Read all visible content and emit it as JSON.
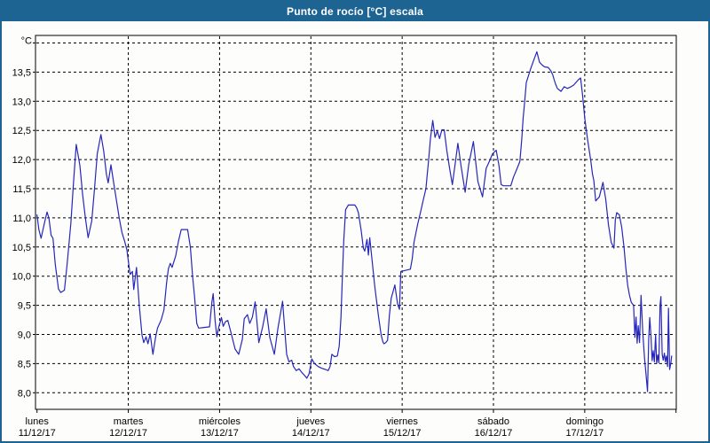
{
  "title": "Punto de rocío [°C] escala",
  "colors": {
    "titlebar": "#1e6493",
    "window_border": "#1e6493",
    "background": "#fdfefc",
    "plot_border": "#000000",
    "grid": "#000000",
    "line": "#2626bb",
    "title_text": "#ffffff",
    "axis_text": "#000000"
  },
  "y_axis": {
    "unit_label": "°C",
    "ticks": [
      {
        "value": 13.5,
        "label": "13,5"
      },
      {
        "value": 13.0,
        "label": "13,0"
      },
      {
        "value": 12.5,
        "label": "12,5"
      },
      {
        "value": 12.0,
        "label": "12,0"
      },
      {
        "value": 11.5,
        "label": "11,5"
      },
      {
        "value": 11.0,
        "label": "11,0"
      },
      {
        "value": 10.5,
        "label": "10,5"
      },
      {
        "value": 10.0,
        "label": "10,0"
      },
      {
        "value": 9.5,
        "label": "9,5"
      },
      {
        "value": 9.0,
        "label": "9,0"
      },
      {
        "value": 8.5,
        "label": "8,5"
      },
      {
        "value": 8.0,
        "label": "8,0"
      }
    ],
    "grid_min": 8.0,
    "grid_max": 14.0,
    "grid_step": 0.5
  },
  "x_axis": {
    "days": [
      {
        "name": "lunes",
        "date": "11/12/17"
      },
      {
        "name": "martes",
        "date": "12/12/17"
      },
      {
        "name": "miércoles",
        "date": "13/12/17"
      },
      {
        "name": "jueves",
        "date": "14/12/17"
      },
      {
        "name": "viernes",
        "date": "15/12/17"
      },
      {
        "name": "sábado",
        "date": "16/12/17"
      },
      {
        "name": "domingo",
        "date": "17/12/17"
      }
    ]
  },
  "chart_data": {
    "type": "line",
    "title": "Punto de rocío [°C] escala",
    "ylabel": "°C",
    "ylim": [
      7.7,
      14.15
    ],
    "xlim_days": [
      0,
      7
    ],
    "grid": "dashed",
    "legend": false,
    "x_unit": "days since lunes 11/12/17 00:00",
    "series": [
      {
        "name": "Punto de rocío",
        "color": "#2626bb",
        "points": [
          [
            0,
            11.05
          ],
          [
            0.02,
            10.8
          ],
          [
            0.045,
            10.65
          ],
          [
            0.08,
            10.9
          ],
          [
            0.11,
            11.1
          ],
          [
            0.13,
            11.0
          ],
          [
            0.155,
            10.7
          ],
          [
            0.175,
            10.65
          ],
          [
            0.2,
            10.2
          ],
          [
            0.235,
            9.78
          ],
          [
            0.26,
            9.72
          ],
          [
            0.3,
            9.76
          ],
          [
            0.33,
            10.2
          ],
          [
            0.37,
            10.9
          ],
          [
            0.4,
            11.6
          ],
          [
            0.43,
            12.26
          ],
          [
            0.47,
            11.9
          ],
          [
            0.5,
            11.4
          ],
          [
            0.53,
            11.0
          ],
          [
            0.56,
            10.66
          ],
          [
            0.6,
            10.95
          ],
          [
            0.63,
            11.5
          ],
          [
            0.66,
            12.1
          ],
          [
            0.7,
            12.43
          ],
          [
            0.73,
            12.15
          ],
          [
            0.76,
            11.75
          ],
          [
            0.78,
            11.6
          ],
          [
            0.81,
            11.91
          ],
          [
            0.84,
            11.6
          ],
          [
            0.87,
            11.3
          ],
          [
            0.9,
            11.0
          ],
          [
            0.93,
            10.75
          ],
          [
            0.96,
            10.6
          ],
          [
            0.985,
            10.45
          ],
          [
            1.005,
            10.2
          ],
          [
            1.02,
            10.03
          ],
          [
            1.045,
            10.08
          ],
          [
            1.06,
            9.77
          ],
          [
            1.09,
            10.15
          ],
          [
            1.12,
            9.5
          ],
          [
            1.15,
            8.99
          ],
          [
            1.17,
            8.86
          ],
          [
            1.195,
            8.96
          ],
          [
            1.215,
            8.84
          ],
          [
            1.24,
            9.01
          ],
          [
            1.27,
            8.66
          ],
          [
            1.3,
            8.96
          ],
          [
            1.32,
            9.11
          ],
          [
            1.36,
            9.25
          ],
          [
            1.39,
            9.42
          ],
          [
            1.42,
            9.9
          ],
          [
            1.44,
            10.13
          ],
          [
            1.46,
            10.22
          ],
          [
            1.48,
            10.15
          ],
          [
            1.52,
            10.35
          ],
          [
            1.55,
            10.6
          ],
          [
            1.58,
            10.8
          ],
          [
            1.65,
            10.8
          ],
          [
            1.68,
            10.5
          ],
          [
            1.705,
            9.98
          ],
          [
            1.725,
            9.67
          ],
          [
            1.75,
            9.19
          ],
          [
            1.77,
            9.11
          ],
          [
            1.83,
            9.12
          ],
          [
            1.89,
            9.13
          ],
          [
            1.915,
            9.55
          ],
          [
            1.93,
            9.7
          ],
          [
            1.95,
            9.25
          ],
          [
            1.97,
            8.96
          ],
          [
            1.99,
            9.12
          ],
          [
            2.02,
            9.29
          ],
          [
            2.04,
            9.14
          ],
          [
            2.065,
            9.22
          ],
          [
            2.09,
            9.24
          ],
          [
            2.13,
            9.0
          ],
          [
            2.17,
            8.75
          ],
          [
            2.21,
            8.66
          ],
          [
            2.25,
            8.92
          ],
          [
            2.27,
            9.27
          ],
          [
            2.305,
            9.34
          ],
          [
            2.33,
            9.19
          ],
          [
            2.36,
            9.3
          ],
          [
            2.39,
            9.56
          ],
          [
            2.43,
            8.86
          ],
          [
            2.47,
            9.12
          ],
          [
            2.51,
            9.44
          ],
          [
            2.55,
            8.95
          ],
          [
            2.6,
            8.66
          ],
          [
            2.64,
            9.12
          ],
          [
            2.69,
            9.57
          ],
          [
            2.735,
            8.66
          ],
          [
            2.76,
            8.53
          ],
          [
            2.79,
            8.56
          ],
          [
            2.81,
            8.45
          ],
          [
            2.84,
            8.38
          ],
          [
            2.87,
            8.41
          ],
          [
            2.9,
            8.35
          ],
          [
            2.93,
            8.3
          ],
          [
            2.955,
            8.25
          ],
          [
            2.98,
            8.32
          ],
          [
            3.01,
            8.58
          ],
          [
            3.04,
            8.5
          ],
          [
            3.08,
            8.45
          ],
          [
            3.12,
            8.42
          ],
          [
            3.16,
            8.4
          ],
          [
            3.19,
            8.38
          ],
          [
            3.21,
            8.45
          ],
          [
            3.23,
            8.66
          ],
          [
            3.26,
            8.62
          ],
          [
            3.29,
            8.63
          ],
          [
            3.31,
            8.8
          ],
          [
            3.33,
            9.3
          ],
          [
            3.345,
            10.0
          ],
          [
            3.36,
            10.6
          ],
          [
            3.38,
            11.14
          ],
          [
            3.41,
            11.22
          ],
          [
            3.48,
            11.22
          ],
          [
            3.5,
            11.18
          ],
          [
            3.52,
            11.09
          ],
          [
            3.55,
            10.79
          ],
          [
            3.575,
            10.48
          ],
          [
            3.59,
            10.43
          ],
          [
            3.615,
            10.63
          ],
          [
            3.63,
            10.36
          ],
          [
            3.645,
            10.66
          ],
          [
            3.67,
            10.28
          ],
          [
            3.7,
            9.82
          ],
          [
            3.74,
            9.32
          ],
          [
            3.77,
            8.99
          ],
          [
            3.79,
            8.87
          ],
          [
            3.8,
            8.84
          ],
          [
            3.82,
            8.86
          ],
          [
            3.84,
            8.9
          ],
          [
            3.86,
            9.32
          ],
          [
            3.88,
            9.62
          ],
          [
            3.92,
            9.85
          ],
          [
            3.95,
            9.52
          ],
          [
            3.97,
            9.43
          ],
          [
            3.985,
            10.08
          ],
          [
            4.04,
            10.1
          ],
          [
            4.09,
            10.12
          ],
          [
            4.11,
            10.3
          ],
          [
            4.13,
            10.58
          ],
          [
            4.17,
            10.89
          ],
          [
            4.2,
            11.09
          ],
          [
            4.23,
            11.3
          ],
          [
            4.26,
            11.5
          ],
          [
            4.29,
            12.0
          ],
          [
            4.31,
            12.36
          ],
          [
            4.335,
            12.67
          ],
          [
            4.36,
            12.38
          ],
          [
            4.385,
            12.49
          ],
          [
            4.41,
            12.36
          ],
          [
            4.435,
            12.51
          ],
          [
            4.46,
            12.51
          ],
          [
            4.49,
            12.15
          ],
          [
            4.52,
            11.85
          ],
          [
            4.55,
            11.57
          ],
          [
            4.58,
            11.92
          ],
          [
            4.61,
            12.28
          ],
          [
            4.645,
            11.89
          ],
          [
            4.69,
            11.44
          ],
          [
            4.73,
            11.92
          ],
          [
            4.78,
            12.31
          ],
          [
            4.83,
            11.62
          ],
          [
            4.88,
            11.36
          ],
          [
            4.92,
            11.85
          ],
          [
            4.955,
            11.97
          ],
          [
            4.99,
            12.1
          ],
          [
            5.03,
            12.16
          ],
          [
            5.06,
            11.9
          ],
          [
            5.085,
            11.57
          ],
          [
            5.11,
            11.55
          ],
          [
            5.19,
            11.55
          ],
          [
            5.22,
            11.7
          ],
          [
            5.26,
            11.85
          ],
          [
            5.29,
            11.97
          ],
          [
            5.31,
            12.35
          ],
          [
            5.325,
            12.7
          ],
          [
            5.34,
            12.96
          ],
          [
            5.36,
            13.32
          ],
          [
            5.41,
            13.57
          ],
          [
            5.44,
            13.7
          ],
          [
            5.475,
            13.85
          ],
          [
            5.505,
            13.67
          ],
          [
            5.535,
            13.62
          ],
          [
            5.56,
            13.59
          ],
          [
            5.6,
            13.58
          ],
          [
            5.63,
            13.52
          ],
          [
            5.65,
            13.45
          ],
          [
            5.665,
            13.37
          ],
          [
            5.68,
            13.3
          ],
          [
            5.7,
            13.22
          ],
          [
            5.74,
            13.17
          ],
          [
            5.775,
            13.25
          ],
          [
            5.81,
            13.22
          ],
          [
            5.85,
            13.25
          ],
          [
            5.88,
            13.28
          ],
          [
            5.93,
            13.37
          ],
          [
            5.955,
            13.4
          ],
          [
            5.975,
            13.12
          ],
          [
            6.0,
            12.71
          ],
          [
            6.03,
            12.36
          ],
          [
            6.065,
            12.0
          ],
          [
            6.085,
            11.75
          ],
          [
            6.1,
            11.64
          ],
          [
            6.12,
            11.29
          ],
          [
            6.16,
            11.36
          ],
          [
            6.2,
            11.61
          ],
          [
            6.23,
            11.32
          ],
          [
            6.26,
            10.88
          ],
          [
            6.29,
            10.58
          ],
          [
            6.32,
            10.48
          ],
          [
            6.335,
            10.96
          ],
          [
            6.35,
            11.09
          ],
          [
            6.38,
            11.05
          ],
          [
            6.405,
            10.84
          ],
          [
            6.43,
            10.5
          ],
          [
            6.45,
            10.15
          ],
          [
            6.47,
            9.85
          ],
          [
            6.49,
            9.67
          ],
          [
            6.51,
            9.55
          ],
          [
            6.535,
            9.5
          ],
          [
            6.55,
            8.95
          ],
          [
            6.562,
            9.3
          ],
          [
            6.574,
            8.85
          ],
          [
            6.586,
            9.15
          ],
          [
            6.6,
            8.86
          ],
          [
            6.617,
            9.67
          ],
          [
            6.635,
            9.05
          ],
          [
            6.655,
            8.6
          ],
          [
            6.672,
            8.3
          ],
          [
            6.688,
            8.02
          ],
          [
            6.7,
            8.9
          ],
          [
            6.712,
            9.29
          ],
          [
            6.725,
            9.0
          ],
          [
            6.738,
            8.55
          ],
          [
            6.75,
            8.72
          ],
          [
            6.763,
            8.53
          ],
          [
            6.776,
            9.0
          ],
          [
            6.788,
            8.5
          ],
          [
            6.8,
            8.65
          ],
          [
            6.812,
            8.51
          ],
          [
            6.825,
            9.5
          ],
          [
            6.835,
            9.65
          ],
          [
            6.848,
            8.66
          ],
          [
            6.86,
            8.56
          ],
          [
            6.872,
            8.68
          ],
          [
            6.883,
            8.53
          ],
          [
            6.895,
            8.63
          ],
          [
            6.907,
            8.45
          ],
          [
            6.917,
            9.45
          ],
          [
            6.93,
            8.4
          ],
          [
            6.942,
            8.5
          ],
          [
            6.952,
            8.63
          ]
        ]
      }
    ]
  }
}
